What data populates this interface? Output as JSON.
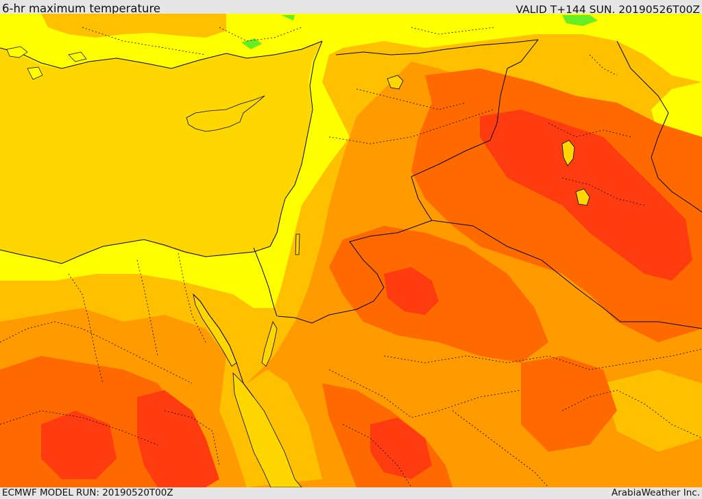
{
  "header": {
    "title": "6-hr maximum temperature",
    "valid": "VALID T+144 SUN. 20190526T00Z"
  },
  "footer": {
    "model_run": "ECMWF MODEL RUN: 20190520T00Z",
    "credit": "ArabiaWeather Inc."
  },
  "colors": {
    "sea": "#ffd700",
    "yellow_band": "#ffff00",
    "light_orange": "#ffc000",
    "orange": "#ff9a00",
    "dark_orange": "#ff6a00",
    "red_orange": "#ff3c10",
    "green_patch": "#66ee22",
    "border_line": "#000000"
  }
}
